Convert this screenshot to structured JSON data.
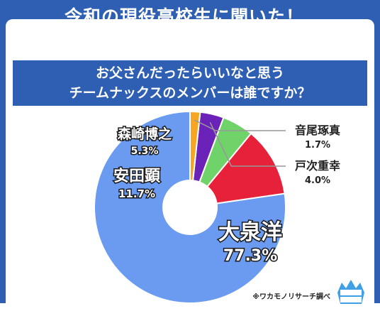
{
  "header": {
    "title": "令和の現役高校生に聞いた！",
    "question_line1": "お父さんだったらいいなと思う",
    "question_line2": "チームナックスのメンバーは誰ですか？"
  },
  "chart_data": {
    "type": "pie",
    "donut": true,
    "categories": [
      "大泉洋",
      "安田顕",
      "森崎博之",
      "戸次重幸",
      "音尾琢真"
    ],
    "values": [
      77.3,
      11.7,
      5.3,
      4.0,
      1.7
    ],
    "value_labels": [
      "77.3%",
      "11.7%",
      "5.3%",
      "4.0%",
      "1.7%"
    ],
    "colors": [
      "#6a9bf0",
      "#e8213a",
      "#6fd36a",
      "#6a22b8",
      "#f6a623"
    ]
  },
  "footer": {
    "source": "※ワカモノリサーチ調べ"
  },
  "logo": {
    "name": "wakamono-research-logo"
  }
}
